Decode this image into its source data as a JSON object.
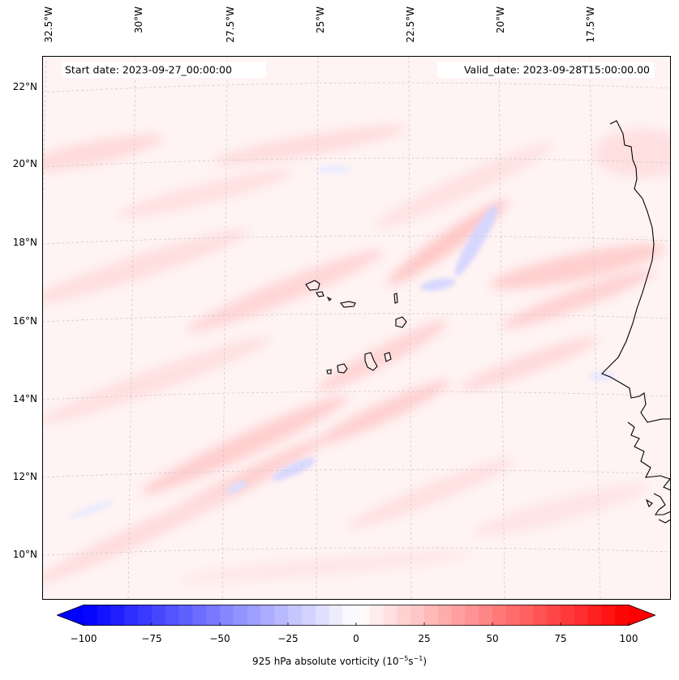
{
  "map": {
    "start_date_label": "Start date: 2023-09-27_00:00:00",
    "valid_date_label": "Valid_date: 2023-09-28T15:00:00.00",
    "longitude_ticks": [
      "32.5°W",
      "30°W",
      "27.5°W",
      "25°W",
      "22.5°W",
      "20°W",
      "17.5°W"
    ],
    "latitude_ticks": [
      "22°N",
      "20°N",
      "18°N",
      "16°N",
      "14°N",
      "12°N",
      "10°N"
    ],
    "colors": {
      "coastline": "#000000",
      "gridline": "#c8c8c8",
      "background_positive": "#fff3f3",
      "positive": "#ff0000",
      "negative": "#0000ff"
    }
  },
  "colorbar": {
    "tick_labels": [
      "−100",
      "−75",
      "−50",
      "−25",
      "0",
      "25",
      "50",
      "75",
      "100"
    ],
    "label_prefix": "925 hPa absolute vorticity (10",
    "label_exp1": "−5",
    "label_mid": "s",
    "label_exp2": "−1",
    "label_suffix": ")",
    "min": -100,
    "max": 100,
    "extend": "both"
  }
}
